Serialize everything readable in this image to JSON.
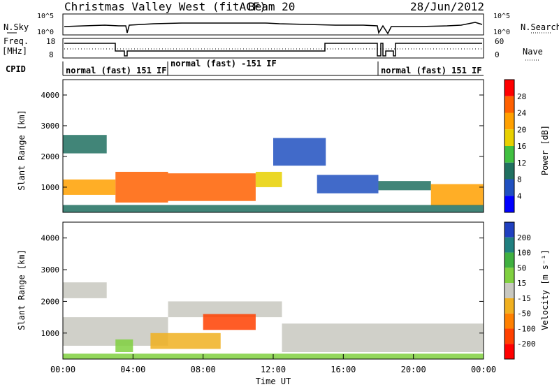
{
  "header": {
    "station": "Christmas Valley West (fitACF)",
    "beam": "Beam 20",
    "date": "28/Jun/2012"
  },
  "summary": {
    "nsky_label": "N.Sky",
    "nsky_ticks": [
      "10^5",
      "10^0"
    ],
    "nsearch_label": "N.Search",
    "nsearch_ticks": [
      "10^5",
      "10^0"
    ],
    "freq_label": "Freq.",
    "freq_unit": "[MHz]",
    "freq_ticks": [
      "18",
      "8"
    ],
    "nave_label": "Nave",
    "nave_ticks": [
      "60",
      "0"
    ],
    "cpid_label": "CPID",
    "cpid_segments": [
      {
        "label": "normal (fast) 151 IF",
        "start_h": 0.0,
        "end_h": 6.0
      },
      {
        "label": "normal (fast) -151 IF",
        "start_h": 6.0,
        "end_h": 18.0
      },
      {
        "label": "normal (fast) 151 IF",
        "start_h": 18.0,
        "end_h": 24.0
      }
    ]
  },
  "chart_data": [
    {
      "type": "heatmap",
      "parameter": "power",
      "ylabel": "Slant Range [km]",
      "ylim": [
        180,
        4500
      ],
      "yticks": [
        "1000",
        "2000",
        "3000",
        "4000"
      ],
      "colorbar_label": "Power [dB]",
      "colorbar_ticks": [
        "28",
        "24",
        "20",
        "16",
        "12",
        "8",
        "4"
      ],
      "colorbar_colors": [
        "#ff0000",
        "#ff6000",
        "#ffa000",
        "#e8d000",
        "#40c040",
        "#207060",
        "#2050c0",
        "#0000ff"
      ],
      "clim": [
        0,
        32
      ],
      "bands": [
        {
          "t0": 0.0,
          "t1": 3.0,
          "r0": 750,
          "r1": 1250,
          "value": 22
        },
        {
          "t0": 3.0,
          "t1": 6.0,
          "r0": 500,
          "r1": 1500,
          "value": 26
        },
        {
          "t0": 6.0,
          "t1": 11.0,
          "r0": 550,
          "r1": 1450,
          "value": 28
        },
        {
          "t0": 11.0,
          "t1": 12.5,
          "r0": 1000,
          "r1": 1500,
          "value": 18
        },
        {
          "t0": 0.0,
          "t1": 2.5,
          "r0": 2100,
          "r1": 2700,
          "value": 12
        },
        {
          "t0": 12.0,
          "t1": 15.0,
          "r0": 1700,
          "r1": 2600,
          "value": 6
        },
        {
          "t0": 14.5,
          "t1": 18.0,
          "r0": 800,
          "r1": 1400,
          "value": 8
        },
        {
          "t0": 18.0,
          "t1": 21.0,
          "r0": 900,
          "r1": 1200,
          "value": 10
        },
        {
          "t0": 21.0,
          "t1": 24.0,
          "r0": 400,
          "r1": 1100,
          "value": 24
        },
        {
          "t0": 0.0,
          "t1": 24.0,
          "r0": 180,
          "r1": 420,
          "value": 10
        }
      ]
    },
    {
      "type": "heatmap",
      "parameter": "velocity",
      "ylabel": "Slant Range [km]",
      "ylim": [
        180,
        4500
      ],
      "yticks": [
        "1000",
        "2000",
        "3000",
        "4000"
      ],
      "xlabel": "Time UT",
      "xticks": [
        "00:00",
        "04:00",
        "08:00",
        "12:00",
        "16:00",
        "20:00",
        "00:00"
      ],
      "colorbar_label": "Velocity [m s⁻¹]",
      "colorbar_ticks": [
        "200",
        "100",
        "50",
        "15",
        "-15",
        "-50",
        "-100",
        "-200"
      ],
      "colorbar_colors": [
        "#2040c0",
        "#208080",
        "#40b040",
        "#80d040",
        "#c8c8c0",
        "#f0b020",
        "#ff8000",
        "#ff4000",
        "#ff0000"
      ],
      "clim": [
        -250,
        250
      ],
      "bands": [
        {
          "t0": 0.0,
          "t1": 6.0,
          "r0": 600,
          "r1": 1500,
          "value": 0
        },
        {
          "t0": 6.0,
          "t1": 12.5,
          "r0": 1500,
          "r1": 2000,
          "value": 0
        },
        {
          "t0": 12.5,
          "t1": 24.0,
          "r0": 400,
          "r1": 1300,
          "value": 0
        },
        {
          "t0": 0.0,
          "t1": 2.5,
          "r0": 2100,
          "r1": 2600,
          "value": 0
        },
        {
          "t0": 5.0,
          "t1": 9.0,
          "r0": 500,
          "r1": 1000,
          "value": -40
        },
        {
          "t0": 8.0,
          "t1": 11.0,
          "r0": 1100,
          "r1": 1600,
          "value": -150
        },
        {
          "t0": 3.0,
          "t1": 4.0,
          "r0": 400,
          "r1": 800,
          "value": 60
        },
        {
          "t0": 0.0,
          "t1": 24.0,
          "r0": 180,
          "r1": 350,
          "value": 30
        }
      ]
    }
  ],
  "colors": {
    "axis": "#000000",
    "background": "#ffffff"
  }
}
